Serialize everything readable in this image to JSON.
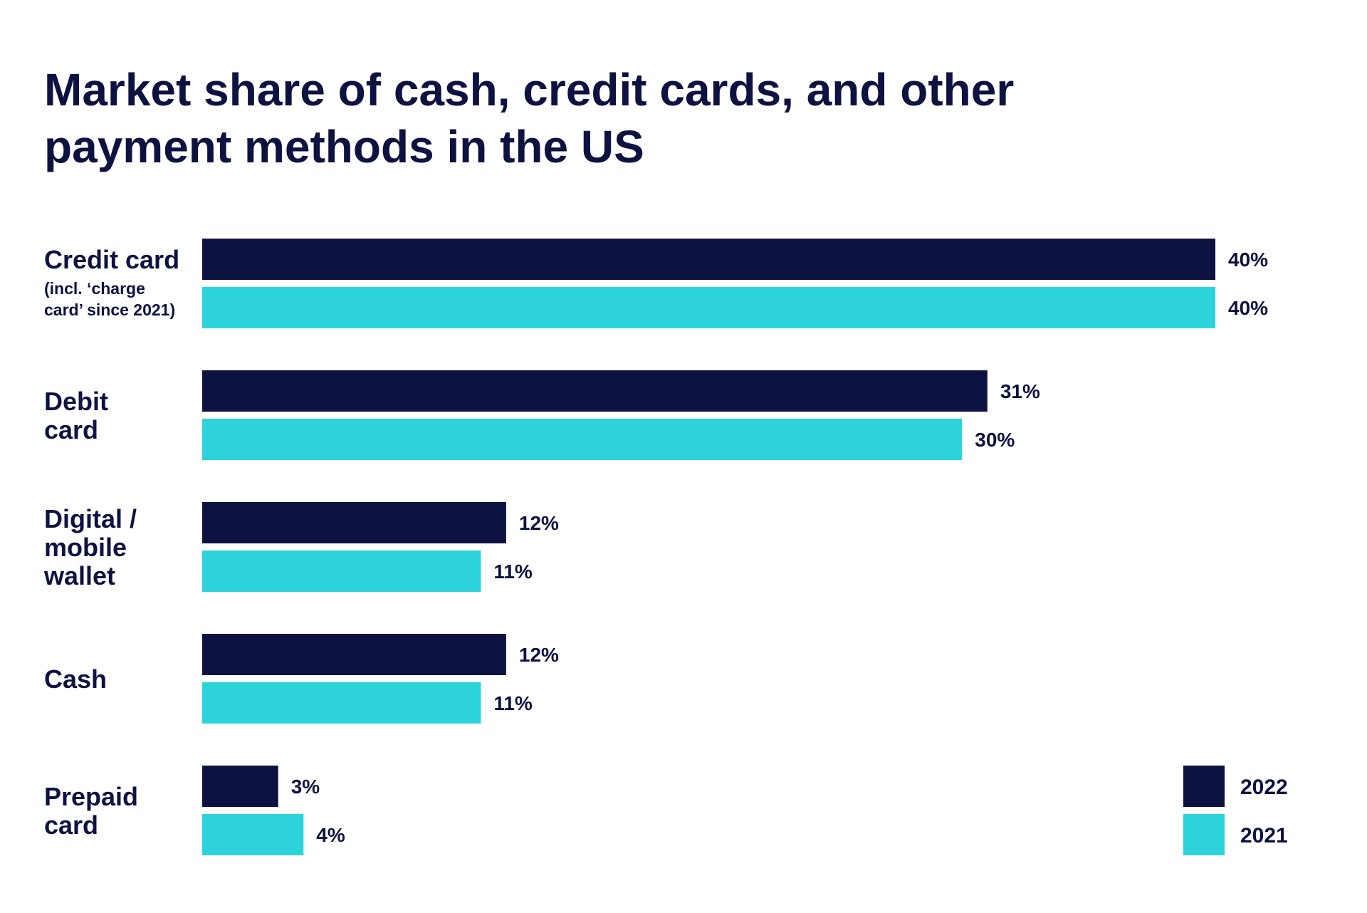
{
  "chart_data": {
    "type": "bar",
    "orientation": "horizontal",
    "title": "Market share of cash, credit cards, and other payment methods in the US",
    "title_lines": [
      "Market share of cash, credit cards, and other",
      "payment methods in the US"
    ],
    "categories": [
      {
        "lines": [
          "Credit card"
        ],
        "note": [
          "(incl. ‘charge",
          "card’ since 2021)"
        ]
      },
      {
        "lines": [
          "Debit",
          "card"
        ],
        "note": []
      },
      {
        "lines": [
          "Digital /",
          "mobile",
          "wallet"
        ],
        "note": []
      },
      {
        "lines": [
          "Cash"
        ],
        "note": []
      },
      {
        "lines": [
          "Prepaid",
          "card"
        ],
        "note": []
      }
    ],
    "series": [
      {
        "name": "2022",
        "color": "#0e1240",
        "values": [
          40,
          31,
          12,
          12,
          3
        ]
      },
      {
        "name": "2021",
        "color": "#2dd3da",
        "values": [
          40,
          30,
          11,
          11,
          4
        ]
      }
    ],
    "value_suffix": "%",
    "xlim": [
      0,
      40
    ],
    "grid": false,
    "legend": "bottom-right"
  }
}
